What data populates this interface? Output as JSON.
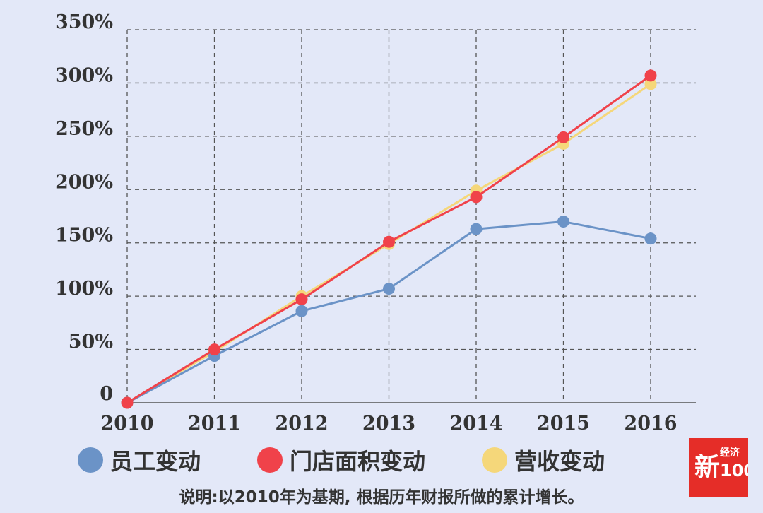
{
  "chart_data": {
    "type": "line",
    "x": [
      "2010",
      "2011",
      "2012",
      "2013",
      "2014",
      "2015",
      "2016"
    ],
    "y_ticks": [
      "0",
      "50%",
      "100%",
      "150%",
      "200%",
      "250%",
      "300%",
      "350%"
    ],
    "ylim": [
      0,
      350
    ],
    "grid": true,
    "legend_position": "bottom",
    "series": [
      {
        "name": "员工变动",
        "color": "#6b93c7",
        "values": [
          0,
          44,
          86,
          107,
          163,
          170,
          154
        ]
      },
      {
        "name": "门店面积变动",
        "color": "#f0424a",
        "values": [
          0,
          50,
          97,
          151,
          193,
          249,
          307
        ]
      },
      {
        "name": "营收变动",
        "color": "#f5d77a",
        "values": [
          0,
          48,
          100,
          149,
          199,
          243,
          299
        ]
      }
    ],
    "note": "说明:以2010年为基期, 根据历年财报所做的累计增长。"
  },
  "logo": {
    "main": "新",
    "sub": "经济",
    "num": "100",
    "color": "#e52d28"
  }
}
